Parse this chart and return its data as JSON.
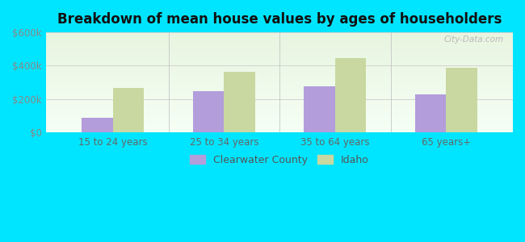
{
  "title": "Breakdown of mean house values by ages of householders",
  "categories": [
    "15 to 24 years",
    "25 to 34 years",
    "35 to 64 years",
    "65 years+"
  ],
  "clearwater_values": [
    90000,
    250000,
    275000,
    230000
  ],
  "idaho_values": [
    265000,
    365000,
    445000,
    390000
  ],
  "clearwater_color": "#b39ddb",
  "idaho_color": "#c8d8a0",
  "ylim": [
    0,
    600000
  ],
  "yticks": [
    0,
    200000,
    400000,
    600000
  ],
  "ytick_labels": [
    "$0",
    "$200k",
    "$400k",
    "$600k"
  ],
  "background_color": "#00e5ff",
  "legend_labels": [
    "Clearwater County",
    "Idaho"
  ],
  "watermark": "City-Data.com",
  "bar_width": 0.28,
  "title_fontsize": 12,
  "tick_fontsize": 8.5,
  "legend_fontsize": 9
}
